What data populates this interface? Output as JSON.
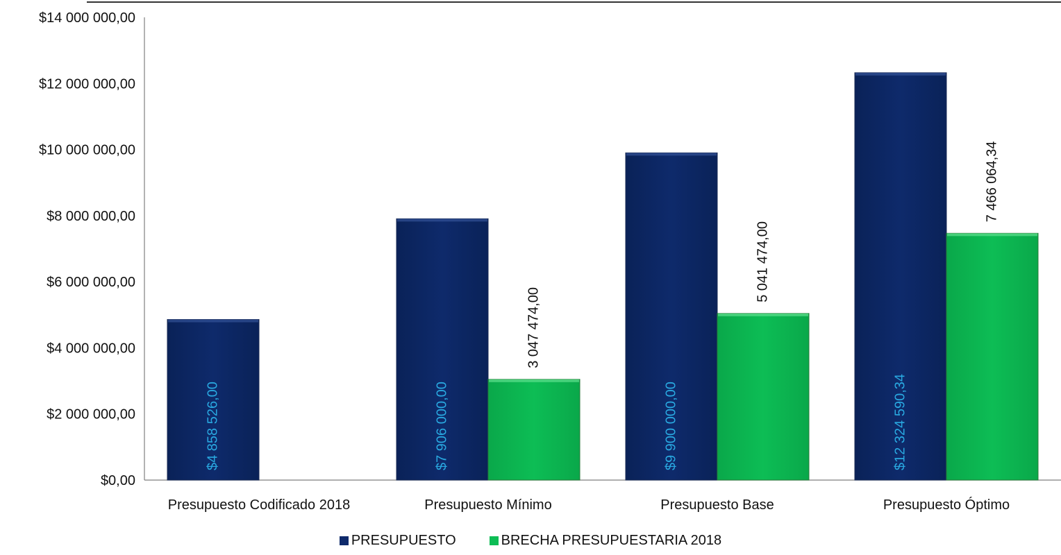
{
  "colors": {
    "presupuesto": "#0e2a6b",
    "presupuesto_edge": "#1a2b55",
    "brecha": "#0dbd55",
    "brecha_edge": "#2a7a3a",
    "presupuesto_label": "#29a8e0",
    "brecha_label": "#111111",
    "axis": "#7f7f7f",
    "text": "#111111"
  },
  "legend": {
    "position": "bottom",
    "items": [
      {
        "name": "PRESUPUESTO",
        "color": "#0e2a6b"
      },
      {
        "name": "BRECHA PRESUPUESTARIA 2018",
        "color": "#0dbd55"
      }
    ]
  },
  "chart_data": {
    "type": "bar",
    "categories": [
      "Presupuesto Codificado 2018",
      "Presupuesto Mínimo",
      "Presupuesto Base",
      "Presupuesto Óptimo"
    ],
    "series": [
      {
        "name": "PRESUPUESTO",
        "values": [
          4858526.0,
          7906000.0,
          9900000.0,
          12324590.34
        ],
        "data_labels": [
          "$4 858 526,00",
          "$7 906 000,00",
          "$9 900 000,00",
          "$12 324 590,34"
        ]
      },
      {
        "name": "BRECHA PRESUPUESTARIA 2018",
        "values": [
          null,
          3047474.0,
          5041474.0,
          7466064.34
        ],
        "data_labels": [
          null,
          "3 047 474,00",
          "5 041 474,00",
          "7 466 064,34"
        ]
      }
    ],
    "title": "",
    "xlabel": "",
    "ylabel": "",
    "ylim": [
      0,
      14000000
    ],
    "yticks": [
      0,
      2000000,
      4000000,
      6000000,
      8000000,
      10000000,
      12000000,
      14000000
    ],
    "ytick_labels": [
      "$0,00",
      "$2 000 000,00",
      "$4 000 000,00",
      "$6 000 000,00",
      "$8 000 000,00",
      "$10 000 000,00",
      "$12 000 000,00",
      "$14 000 000,00"
    ],
    "grid": false
  }
}
